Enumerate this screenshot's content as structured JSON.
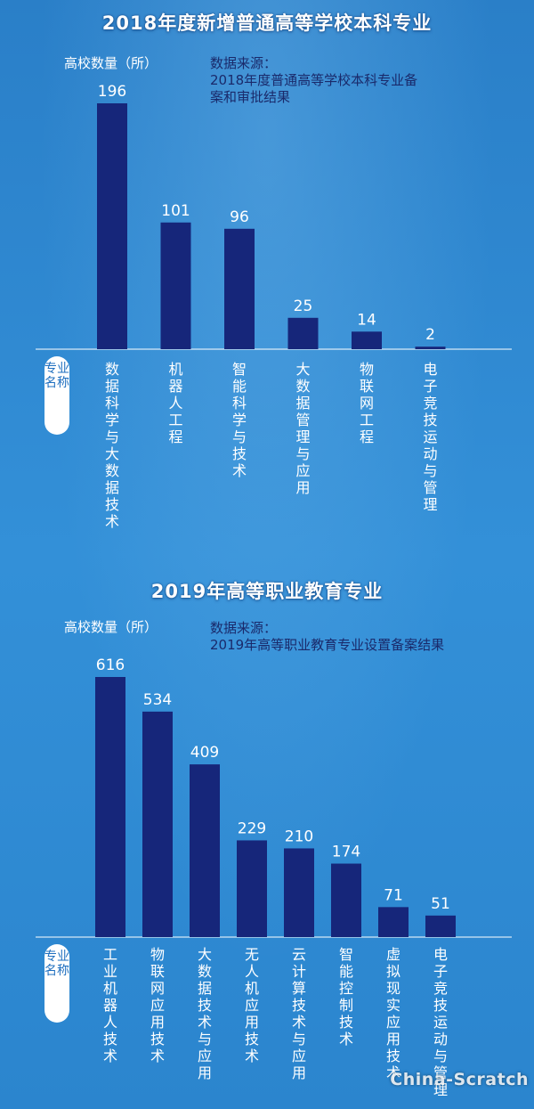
{
  "chart_data": [
    {
      "type": "bar",
      "title": "2018年度新增普通高等学校本科专业",
      "ylabel": "高校数量（所）",
      "source_label": "数据来源：",
      "source_text": [
        "2018年度普通高等学校本科专业备",
        "案和审批结果"
      ],
      "axis_tag": "专业名称",
      "categories": [
        "数据科学与大数据技术",
        "机器人工程",
        "智能科学与技术",
        "大数据管理与应用",
        "物联网工程",
        "电子竞技运动与管理"
      ],
      "values": [
        196,
        101,
        96,
        25,
        14,
        2
      ],
      "ylim": [
        0,
        196
      ],
      "bar_color": "#16267a"
    },
    {
      "type": "bar",
      "title": "2019年高等职业教育专业",
      "ylabel": "高校数量（所）",
      "source_label": "数据来源：",
      "source_text": [
        "2019年高等职业教育专业设置备案结果"
      ],
      "axis_tag": "专业名称",
      "categories": [
        "工业机器人技术",
        "物联网应用技术",
        "大数据技术与应用",
        "无人机应用技术",
        "云计算技术与应用",
        "智能控制技术",
        "虚拟现实应用技术",
        "电子竞技运动与管理"
      ],
      "values": [
        616,
        534,
        409,
        229,
        210,
        174,
        71,
        51
      ],
      "ylim": [
        0,
        616
      ],
      "bar_color": "#16267a"
    }
  ],
  "background_color": "#2f86cf",
  "watermark": "China-Scratch"
}
